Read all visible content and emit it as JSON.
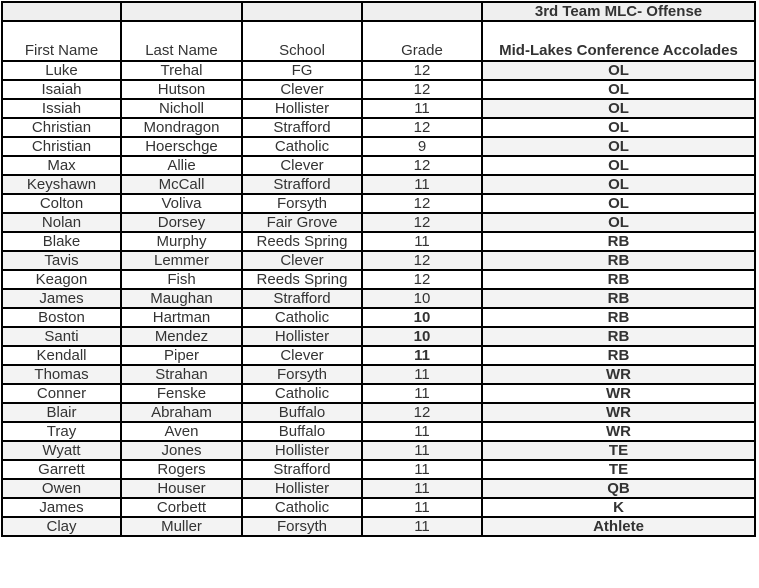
{
  "title": "3rd Team MLC- Offense",
  "headers": [
    "First Name",
    "Last Name",
    "School",
    "Grade",
    "Mid-Lakes Conference Accolades"
  ],
  "rows": [
    {
      "first": "Luke",
      "last": "Trehal",
      "school": "FG",
      "grade": "12",
      "accolade": "OL"
    },
    {
      "first": "Isaiah",
      "last": "Hutson",
      "school": "Clever",
      "grade": "12",
      "accolade": "OL"
    },
    {
      "first": "Issiah",
      "last": "Nicholl",
      "school": "Hollister",
      "grade": "11",
      "accolade": "OL"
    },
    {
      "first": "Christian",
      "last": "Mondragon",
      "school": "Strafford",
      "grade": "12",
      "accolade": "OL"
    },
    {
      "first": "Christian",
      "last": "Hoerschge",
      "school": "Catholic",
      "grade": "9",
      "accolade": "OL"
    },
    {
      "first": "Max",
      "last": "Allie",
      "school": "Clever",
      "grade": "12",
      "accolade": "OL"
    },
    {
      "first": "Keyshawn",
      "last": "McCall",
      "school": "Strafford",
      "grade": "11",
      "accolade": "OL"
    },
    {
      "first": "Colton",
      "last": "Voliva",
      "school": "Forsyth",
      "grade": "12",
      "accolade": "OL"
    },
    {
      "first": "Nolan",
      "last": "Dorsey",
      "school": "Fair Grove",
      "grade": "12",
      "accolade": "OL"
    },
    {
      "first": "Blake",
      "last": "Murphy",
      "school": "Reeds Spring",
      "grade": "11",
      "accolade": "RB"
    },
    {
      "first": "Tavis",
      "last": "Lemmer",
      "school": "Clever",
      "grade": "12",
      "accolade": "RB"
    },
    {
      "first": "Keagon",
      "last": "Fish",
      "school": "Reeds Spring",
      "grade": "12",
      "accolade": "RB"
    },
    {
      "first": "James",
      "last": "Maughan",
      "school": "Strafford",
      "grade": "10",
      "accolade": "RB"
    },
    {
      "first": "Boston",
      "last": "Hartman",
      "school": "Catholic",
      "grade": "10",
      "accolade": "RB",
      "grade_bold": true
    },
    {
      "first": "Santi",
      "last": "Mendez",
      "school": "Hollister",
      "grade": "10",
      "accolade": "RB",
      "grade_bold": true
    },
    {
      "first": "Kendall",
      "last": "Piper",
      "school": "Clever",
      "grade": "11",
      "accolade": "RB",
      "grade_bold": true
    },
    {
      "first": "Thomas",
      "last": "Strahan",
      "school": "Forsyth",
      "grade": "11",
      "accolade": "WR"
    },
    {
      "first": "Conner",
      "last": "Fenske",
      "school": "Catholic",
      "grade": "11",
      "accolade": "WR"
    },
    {
      "first": "Blair",
      "last": "Abraham",
      "school": "Buffalo",
      "grade": "12",
      "accolade": "WR"
    },
    {
      "first": "Tray",
      "last": "Aven",
      "school": "Buffalo",
      "grade": "11",
      "accolade": "WR"
    },
    {
      "first": "Wyatt",
      "last": "Jones",
      "school": "Hollister",
      "grade": "11",
      "accolade": "TE"
    },
    {
      "first": "Garrett",
      "last": "Rogers",
      "school": "Strafford",
      "grade": "11",
      "accolade": "TE"
    },
    {
      "first": "Owen",
      "last": "Houser",
      "school": "Hollister",
      "grade": "11",
      "accolade": "QB"
    },
    {
      "first": "James",
      "last": "Corbett",
      "school": "Catholic",
      "grade": "11",
      "accolade": "K"
    },
    {
      "first": "Clay",
      "last": "Muller",
      "school": "Forsyth",
      "grade": "11",
      "accolade": "Athlete"
    }
  ],
  "colors": {
    "border": "#000000",
    "text": "#333333",
    "shade": "#f3f3f3",
    "header_shade": "#efefef"
  }
}
